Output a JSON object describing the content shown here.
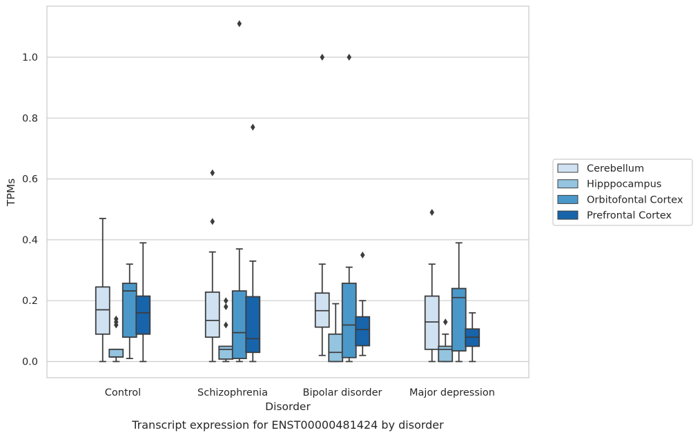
{
  "chart_data": {
    "type": "box",
    "caption": "Transcript expression for ENST00000481424 by disorder",
    "xlabel": "Disorder",
    "ylabel": "TPMs",
    "ylim": [
      -0.055,
      1.17
    ],
    "yticks": [
      0.0,
      0.2,
      0.4,
      0.6,
      0.8,
      1.0
    ],
    "ytick_labels": [
      "0.0",
      "0.2",
      "0.4",
      "0.6",
      "0.8",
      "1.0"
    ],
    "grid": "horizontal",
    "legend_position": "right",
    "categories": [
      "Control",
      "Schizophrenia",
      "Bipolar disorder",
      "Major depression"
    ],
    "series": [
      {
        "name": "Cerebellum",
        "color": "#d0e1f2",
        "boxes": [
          {
            "whislo": 0.0,
            "q1": 0.09,
            "med": 0.17,
            "q3": 0.245,
            "whishi": 0.47,
            "fliers": []
          },
          {
            "whislo": 0.0,
            "q1": 0.08,
            "med": 0.135,
            "q3": 0.228,
            "whishi": 0.36,
            "fliers": [
              0.46,
              0.62
            ]
          },
          {
            "whislo": 0.02,
            "q1": 0.113,
            "med": 0.167,
            "q3": 0.225,
            "whishi": 0.32,
            "fliers": [
              1.0
            ]
          },
          {
            "whislo": 0.0,
            "q1": 0.04,
            "med": 0.13,
            "q3": 0.215,
            "whishi": 0.32,
            "fliers": [
              0.49
            ]
          }
        ]
      },
      {
        "name": "Hipppocampus",
        "color": "#94c4df",
        "boxes": [
          {
            "whislo": 0.0,
            "q1": 0.015,
            "med": 0.015,
            "q3": 0.04,
            "whishi": 0.04,
            "fliers": [
              0.12,
              0.13,
              0.14
            ]
          },
          {
            "whislo": 0.0,
            "q1": 0.008,
            "med": 0.04,
            "q3": 0.05,
            "whishi": 0.05,
            "fliers": [
              0.12,
              0.18,
              0.2
            ]
          },
          {
            "whislo": 0.0,
            "q1": 0.0,
            "med": 0.03,
            "q3": 0.09,
            "whishi": 0.19,
            "fliers": []
          },
          {
            "whislo": 0.0,
            "q1": 0.0,
            "med": 0.04,
            "q3": 0.05,
            "whishi": 0.09,
            "fliers": [
              0.13
            ]
          }
        ]
      },
      {
        "name": "Orbitofontal Cortex",
        "color": "#4a98c9",
        "boxes": [
          {
            "whislo": 0.01,
            "q1": 0.08,
            "med": 0.232,
            "q3": 0.257,
            "whishi": 0.32,
            "fliers": []
          },
          {
            "whislo": 0.0,
            "q1": 0.01,
            "med": 0.095,
            "q3": 0.232,
            "whishi": 0.37,
            "fliers": [
              1.11
            ]
          },
          {
            "whislo": 0.0,
            "q1": 0.013,
            "med": 0.12,
            "q3": 0.257,
            "whishi": 0.31,
            "fliers": [
              1.0
            ]
          },
          {
            "whislo": 0.0,
            "q1": 0.035,
            "med": 0.21,
            "q3": 0.24,
            "whishi": 0.39,
            "fliers": []
          }
        ]
      },
      {
        "name": "Prefrontal Cortex",
        "color": "#1764ab",
        "boxes": [
          {
            "whislo": 0.0,
            "q1": 0.09,
            "med": 0.16,
            "q3": 0.215,
            "whishi": 0.39,
            "fliers": []
          },
          {
            "whislo": 0.0,
            "q1": 0.03,
            "med": 0.075,
            "q3": 0.213,
            "whishi": 0.33,
            "fliers": [
              0.77
            ]
          },
          {
            "whislo": 0.02,
            "q1": 0.052,
            "med": 0.105,
            "q3": 0.147,
            "whishi": 0.2,
            "fliers": [
              0.35
            ]
          },
          {
            "whislo": 0.0,
            "q1": 0.05,
            "med": 0.08,
            "q3": 0.107,
            "whishi": 0.16,
            "fliers": []
          }
        ]
      }
    ]
  }
}
